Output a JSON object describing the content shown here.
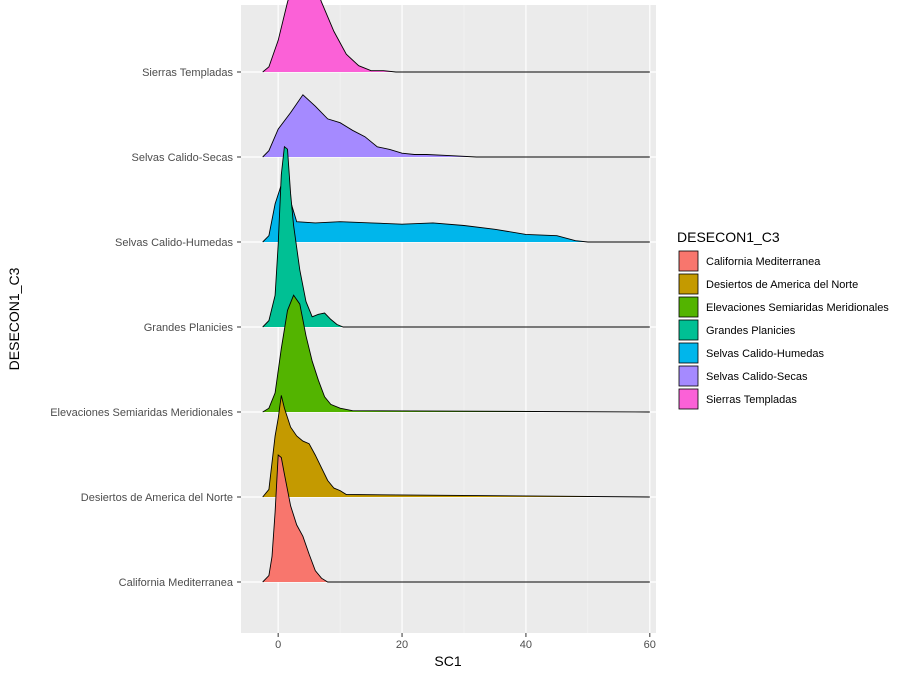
{
  "chart_data": {
    "type": "ridgeline",
    "title": "",
    "xlabel": "SC1",
    "ylabel": "DESECON1_C3",
    "xlim": [
      -6,
      61
    ],
    "x_ticks": [
      0,
      20,
      40,
      60
    ],
    "x_tick_labels": [
      "0",
      "20",
      "40",
      "60"
    ],
    "grid": true,
    "legend_position": "right",
    "legend_title": "DESECON1_C3",
    "series": [
      {
        "name": "California Mediterranea",
        "color": "#F8766D",
        "density": [
          [
            -2.5,
            0
          ],
          [
            -1.5,
            0.05
          ],
          [
            -1,
            0.2
          ],
          [
            -0.5,
            0.55
          ],
          [
            0,
            1.0
          ],
          [
            0.5,
            0.98
          ],
          [
            1,
            0.85
          ],
          [
            2,
            0.6
          ],
          [
            3,
            0.45
          ],
          [
            4,
            0.36
          ],
          [
            5,
            0.22
          ],
          [
            6,
            0.09
          ],
          [
            7,
            0.03
          ],
          [
            8,
            0.0
          ],
          [
            60,
            0
          ]
        ]
      },
      {
        "name": "Desiertos de America del Norte",
        "color": "#C49A00",
        "density": [
          [
            -2.5,
            0
          ],
          [
            -1.5,
            0.06
          ],
          [
            -0.5,
            0.48
          ],
          [
            0,
            0.62
          ],
          [
            0.5,
            0.8
          ],
          [
            1,
            0.7
          ],
          [
            2,
            0.55
          ],
          [
            3,
            0.48
          ],
          [
            4,
            0.44
          ],
          [
            5,
            0.42
          ],
          [
            6,
            0.33
          ],
          [
            7,
            0.23
          ],
          [
            8,
            0.13
          ],
          [
            9,
            0.07
          ],
          [
            10,
            0.05
          ],
          [
            11,
            0.02
          ],
          [
            60,
            0
          ]
        ]
      },
      {
        "name": "Elevaciones Semiaridas Meridionales",
        "color": "#53B400",
        "density": [
          [
            -2.5,
            0
          ],
          [
            -1.5,
            0.03
          ],
          [
            -0.5,
            0.15
          ],
          [
            0.5,
            0.5
          ],
          [
            1.5,
            0.8
          ],
          [
            2.5,
            0.92
          ],
          [
            3.5,
            0.85
          ],
          [
            4.5,
            0.6
          ],
          [
            5.5,
            0.4
          ],
          [
            6.5,
            0.25
          ],
          [
            7.5,
            0.12
          ],
          [
            8.5,
            0.06
          ],
          [
            10,
            0.03
          ],
          [
            12,
            0.01
          ],
          [
            60,
            0
          ]
        ]
      },
      {
        "name": "Grandes Planicies",
        "color": "#00C094",
        "density": [
          [
            -2.5,
            0
          ],
          [
            -1.5,
            0.05
          ],
          [
            -0.5,
            0.25
          ],
          [
            0,
            0.65
          ],
          [
            0.5,
            1.2
          ],
          [
            1,
            1.42
          ],
          [
            1.5,
            1.4
          ],
          [
            2,
            1.05
          ],
          [
            2.5,
            0.8
          ],
          [
            3.5,
            0.45
          ],
          [
            4.5,
            0.2
          ],
          [
            5.5,
            0.08
          ],
          [
            6.5,
            0.1
          ],
          [
            7.5,
            0.11
          ],
          [
            8.5,
            0.06
          ],
          [
            9.5,
            0.02
          ],
          [
            10.5,
            0.0
          ],
          [
            60,
            0
          ]
        ]
      },
      {
        "name": "Selvas Calido-Humedas",
        "color": "#00B6EB",
        "density": [
          [
            -2.5,
            0
          ],
          [
            -1.5,
            0.05
          ],
          [
            -0.5,
            0.3
          ],
          [
            0.5,
            0.45
          ],
          [
            1.5,
            0.4
          ],
          [
            3,
            0.16
          ],
          [
            6,
            0.15
          ],
          [
            10,
            0.16
          ],
          [
            15,
            0.15
          ],
          [
            20,
            0.14
          ],
          [
            25,
            0.15
          ],
          [
            30,
            0.13
          ],
          [
            35,
            0.1
          ],
          [
            40,
            0.06
          ],
          [
            45,
            0.05
          ],
          [
            48,
            0.01
          ],
          [
            50,
            0.0
          ],
          [
            60,
            0
          ]
        ]
      },
      {
        "name": "Selvas Calido-Secas",
        "color": "#A58AFF",
        "density": [
          [
            -2.5,
            0
          ],
          [
            -1.5,
            0.05
          ],
          [
            0,
            0.22
          ],
          [
            2,
            0.35
          ],
          [
            4,
            0.49
          ],
          [
            6,
            0.4
          ],
          [
            8,
            0.3
          ],
          [
            10,
            0.27
          ],
          [
            12,
            0.21
          ],
          [
            14,
            0.16
          ],
          [
            16,
            0.08
          ],
          [
            18,
            0.06
          ],
          [
            20,
            0.03
          ],
          [
            22,
            0.02
          ],
          [
            24,
            0.02
          ],
          [
            28,
            0.01
          ],
          [
            32,
            0.0
          ],
          [
            60,
            0
          ]
        ]
      },
      {
        "name": "Sierras Templadas",
        "color": "#FB61D7",
        "density": [
          [
            -2.5,
            0
          ],
          [
            -1.5,
            0.04
          ],
          [
            0,
            0.25
          ],
          [
            1.5,
            0.55
          ],
          [
            3,
            0.78
          ],
          [
            4.2,
            0.82
          ],
          [
            5.5,
            0.75
          ],
          [
            7,
            0.55
          ],
          [
            9,
            0.32
          ],
          [
            11,
            0.14
          ],
          [
            13,
            0.05
          ],
          [
            15,
            0.01
          ],
          [
            17,
            0.01
          ],
          [
            19,
            0.0
          ],
          [
            60,
            0
          ]
        ]
      }
    ]
  }
}
